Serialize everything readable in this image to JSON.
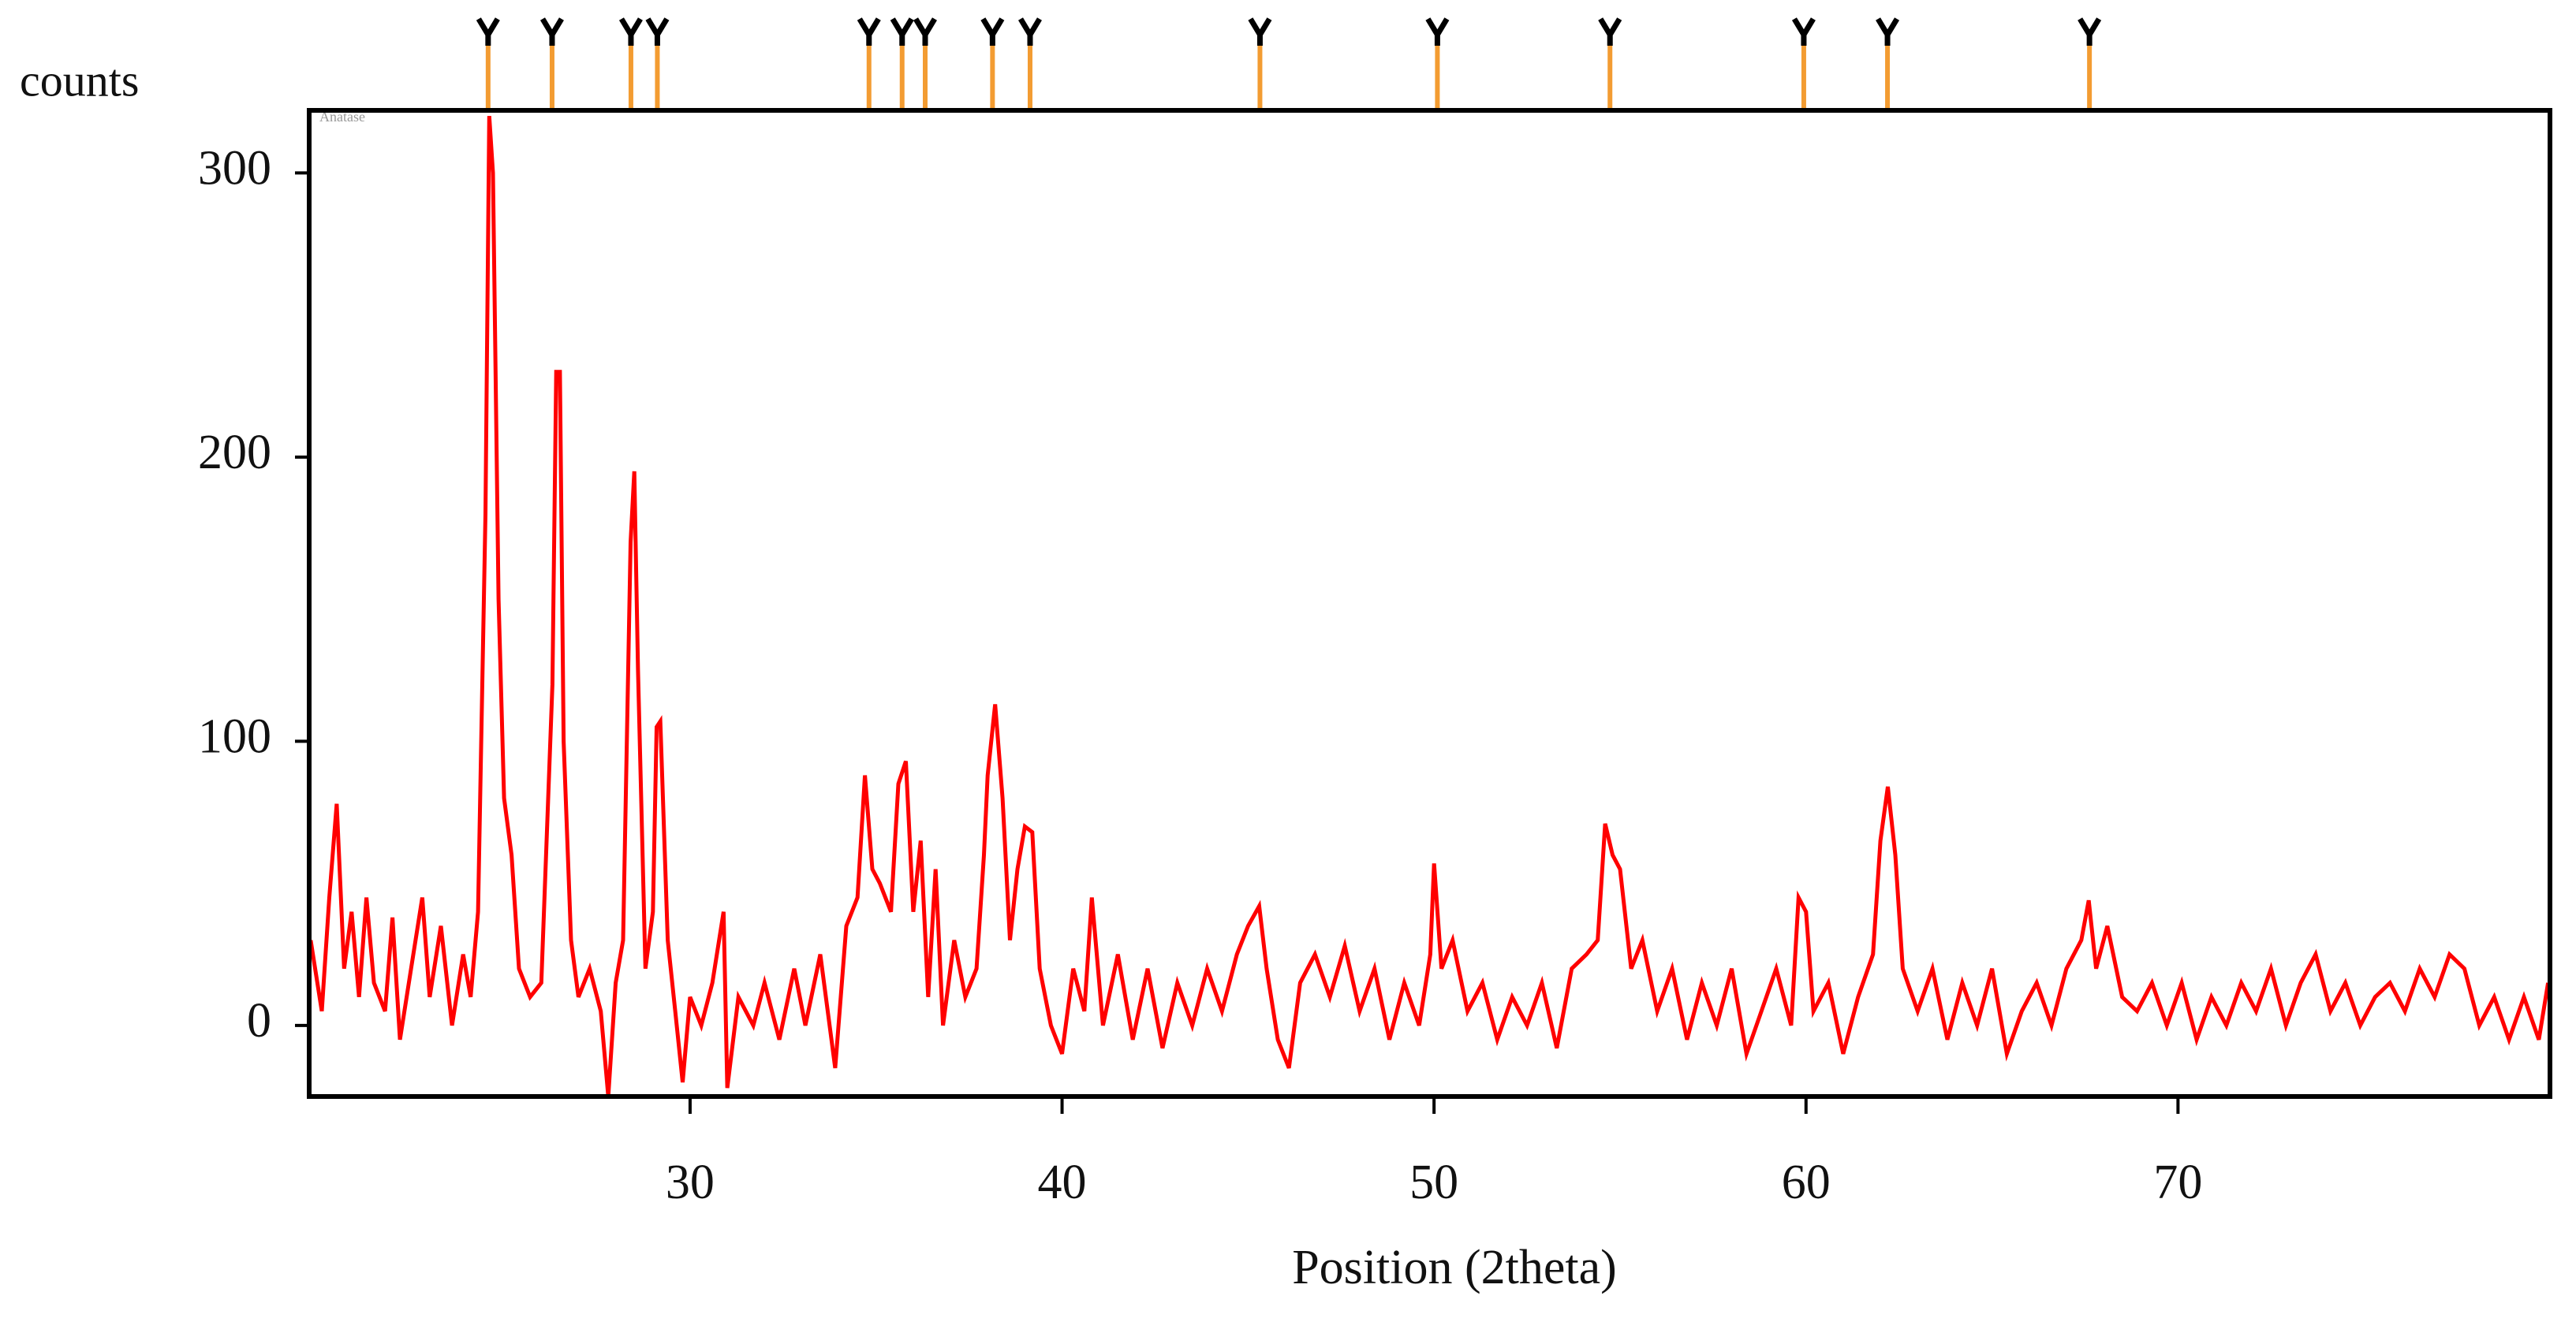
{
  "chart_data": {
    "type": "line",
    "y_label": "counts",
    "x_label": "Position (2theta)",
    "legend_label": "Anatase",
    "x": [
      19.8,
      20.1,
      20.3,
      20.5,
      20.7,
      20.9,
      21.1,
      21.3,
      21.5,
      21.8,
      22.0,
      22.2,
      22.5,
      22.8,
      23.0,
      23.3,
      23.6,
      23.9,
      24.1,
      24.3,
      24.5,
      24.6,
      24.7,
      24.85,
      25.0,
      25.2,
      25.4,
      25.7,
      26.0,
      26.3,
      26.4,
      26.5,
      26.6,
      26.8,
      27.0,
      27.3,
      27.6,
      27.8,
      28.0,
      28.2,
      28.4,
      28.5,
      28.6,
      28.8,
      29.0,
      29.1,
      29.2,
      29.4,
      29.6,
      29.8,
      30.0,
      30.3,
      30.6,
      30.9,
      31.0,
      31.3,
      31.7,
      32.0,
      32.4,
      32.8,
      33.1,
      33.5,
      33.9,
      34.2,
      34.5,
      34.7,
      34.9,
      35.1,
      35.4,
      35.6,
      35.8,
      36.0,
      36.2,
      36.4,
      36.6,
      36.8,
      37.1,
      37.4,
      37.7,
      37.9,
      38.0,
      38.2,
      38.4,
      38.6,
      38.8,
      39.0,
      39.2,
      39.4,
      39.7,
      40.0,
      40.3,
      40.6,
      40.8,
      41.1,
      41.5,
      41.9,
      42.3,
      42.7,
      43.1,
      43.5,
      43.9,
      44.3,
      44.7,
      45.0,
      45.3,
      45.5,
      45.8,
      46.1,
      46.4,
      46.8,
      47.2,
      47.6,
      48.0,
      48.4,
      48.8,
      49.2,
      49.6,
      49.9,
      50.0,
      50.2,
      50.5,
      50.9,
      51.3,
      51.7,
      52.1,
      52.5,
      52.9,
      53.3,
      53.7,
      54.1,
      54.4,
      54.6,
      54.8,
      55.0,
      55.3,
      55.6,
      56.0,
      56.4,
      56.8,
      57.2,
      57.6,
      58.0,
      58.4,
      58.8,
      59.2,
      59.6,
      59.8,
      60.0,
      60.2,
      60.6,
      61.0,
      61.4,
      61.8,
      62.0,
      62.2,
      62.4,
      62.6,
      63.0,
      63.4,
      63.8,
      64.2,
      64.6,
      65.0,
      65.4,
      65.8,
      66.2,
      66.6,
      67.0,
      67.4,
      67.6,
      67.8,
      68.1,
      68.5,
      68.9,
      69.3,
      69.7,
      70.1,
      70.5,
      70.9,
      71.3,
      71.7,
      72.1,
      72.5,
      72.9,
      73.3,
      73.7,
      74.1,
      74.5,
      74.9,
      75.3,
      75.7,
      76.1,
      76.5,
      76.9,
      77.3,
      77.7,
      78.1,
      78.5,
      78.9,
      79.3,
      79.7,
      79.95
    ],
    "series": [
      {
        "color": "#ff0000",
        "values": [
          30,
          5,
          45,
          78,
          20,
          40,
          10,
          45,
          15,
          5,
          38,
          -5,
          20,
          45,
          10,
          35,
          0,
          25,
          10,
          40,
          180,
          320,
          300,
          150,
          80,
          60,
          20,
          10,
          15,
          120,
          230,
          230,
          100,
          30,
          10,
          20,
          5,
          -25,
          15,
          30,
          170,
          195,
          125,
          20,
          40,
          105,
          107,
          30,
          5,
          -20,
          10,
          0,
          15,
          40,
          -22,
          10,
          0,
          15,
          -5,
          20,
          0,
          25,
          -15,
          35,
          45,
          88,
          55,
          50,
          40,
          85,
          93,
          40,
          65,
          10,
          55,
          0,
          30,
          10,
          20,
          60,
          88,
          113,
          80,
          30,
          55,
          70,
          68,
          20,
          0,
          -10,
          20,
          5,
          45,
          0,
          25,
          -5,
          20,
          -8,
          15,
          0,
          20,
          5,
          25,
          35,
          42,
          20,
          -5,
          -15,
          15,
          25,
          10,
          28,
          5,
          20,
          -5,
          15,
          0,
          25,
          57,
          20,
          30,
          5,
          15,
          -5,
          10,
          0,
          15,
          -8,
          20,
          25,
          30,
          71,
          60,
          55,
          20,
          30,
          5,
          20,
          -5,
          15,
          0,
          20,
          -10,
          5,
          20,
          0,
          45,
          40,
          5,
          15,
          -10,
          10,
          25,
          65,
          84,
          60,
          20,
          5,
          20,
          -5,
          15,
          0,
          20,
          -10,
          5,
          15,
          0,
          20,
          30,
          44,
          20,
          35,
          10,
          5,
          15,
          0,
          15,
          -5,
          10,
          0,
          15,
          5,
          20,
          0,
          15,
          25,
          5,
          15,
          0,
          10,
          15,
          5,
          20,
          10,
          25,
          20,
          0,
          10,
          -5,
          10,
          -5,
          15
        ]
      }
    ],
    "reference_peaks": {
      "color": "#f39c32",
      "x": [
        24.57,
        26.29,
        28.41,
        29.12,
        34.81,
        35.7,
        36.32,
        38.13,
        39.14,
        45.32,
        50.09,
        54.73,
        59.94,
        62.19,
        67.62
      ]
    },
    "xlim": [
      19.76,
      80
    ],
    "xticks": [
      30,
      40,
      50,
      60,
      70
    ],
    "ylim": [
      -25,
      322
    ],
    "yticks": [
      0,
      100,
      200,
      300
    ]
  }
}
